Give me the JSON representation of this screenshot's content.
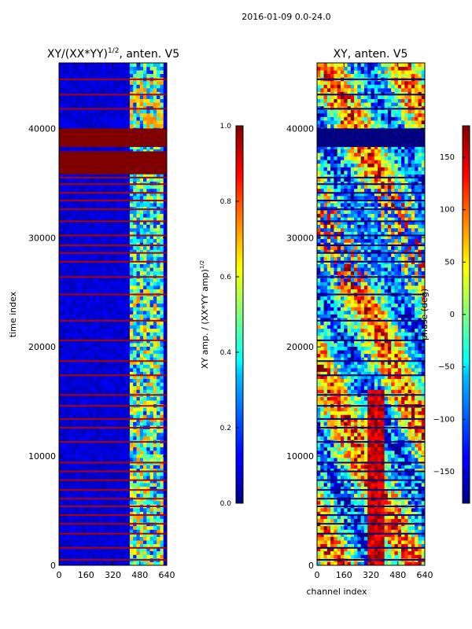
{
  "suptitle": "2016-01-09 0.0-24.0",
  "chart_data": [
    {
      "type": "heatmap",
      "title_text": "XY/(XX*YY)",
      "title_sup": "1/2",
      "title_suffix": ", anten. V5",
      "xlabel": "",
      "ylabel": "time index",
      "xlim": [
        0,
        640
      ],
      "ylim": [
        0,
        46000
      ],
      "x_ticks": [
        0,
        160,
        320,
        480,
        640
      ],
      "y_ticks": [
        0,
        10000,
        20000,
        30000,
        40000
      ],
      "colorbar": {
        "label_text": "XY amp. / (XX*YY amp)",
        "label_sup": "1/2",
        "range": [
          0.0,
          1.0
        ],
        "ticks": [
          "0.0",
          "0.2",
          "0.4",
          "0.6",
          "0.8",
          "1.0"
        ],
        "colormap": "jet"
      },
      "saturated_bands": [
        [
          38300,
          40000
        ],
        [
          35800,
          37900
        ]
      ],
      "flag_rows": [
        500,
        1600,
        2900,
        3800,
        4600,
        5400,
        6100,
        6900,
        7800,
        8600,
        9400,
        11300,
        12600,
        13400,
        14600,
        15600,
        17400,
        18700,
        20600,
        22400,
        24800,
        26400,
        27800,
        28600,
        29300,
        30200,
        31500,
        32600,
        33400,
        34100,
        34900,
        35500,
        38500,
        41800,
        43100,
        44500
      ]
    },
    {
      "type": "heatmap",
      "title": "XY, anten. V5",
      "xlabel": "channel index",
      "ylabel": "",
      "xlim": [
        0,
        640
      ],
      "ylim": [
        0,
        46000
      ],
      "x_ticks": [
        0,
        160,
        320,
        480,
        640
      ],
      "y_ticks": [
        0,
        10000,
        20000,
        30000,
        40000
      ],
      "colorbar": {
        "label": "phase (deg)",
        "range": [
          -180,
          180
        ],
        "ticks": [
          "−150",
          "−100",
          "−50",
          "0",
          "50",
          "100",
          "150"
        ],
        "colormap": "jet"
      },
      "saturated_bands": [
        [
          38300,
          40000
        ]
      ],
      "flag_rows": [
        500,
        1600,
        2900,
        3800,
        4600,
        5400,
        6100,
        6900,
        7800,
        8600,
        9400,
        11300,
        12600,
        13400,
        14600,
        15600,
        17400,
        18700,
        20600,
        22400,
        24800,
        26400,
        27800,
        28600,
        29300,
        30200,
        31500,
        32600,
        33400,
        34100,
        34900,
        35500,
        38500,
        41800,
        43100,
        44500
      ]
    }
  ]
}
